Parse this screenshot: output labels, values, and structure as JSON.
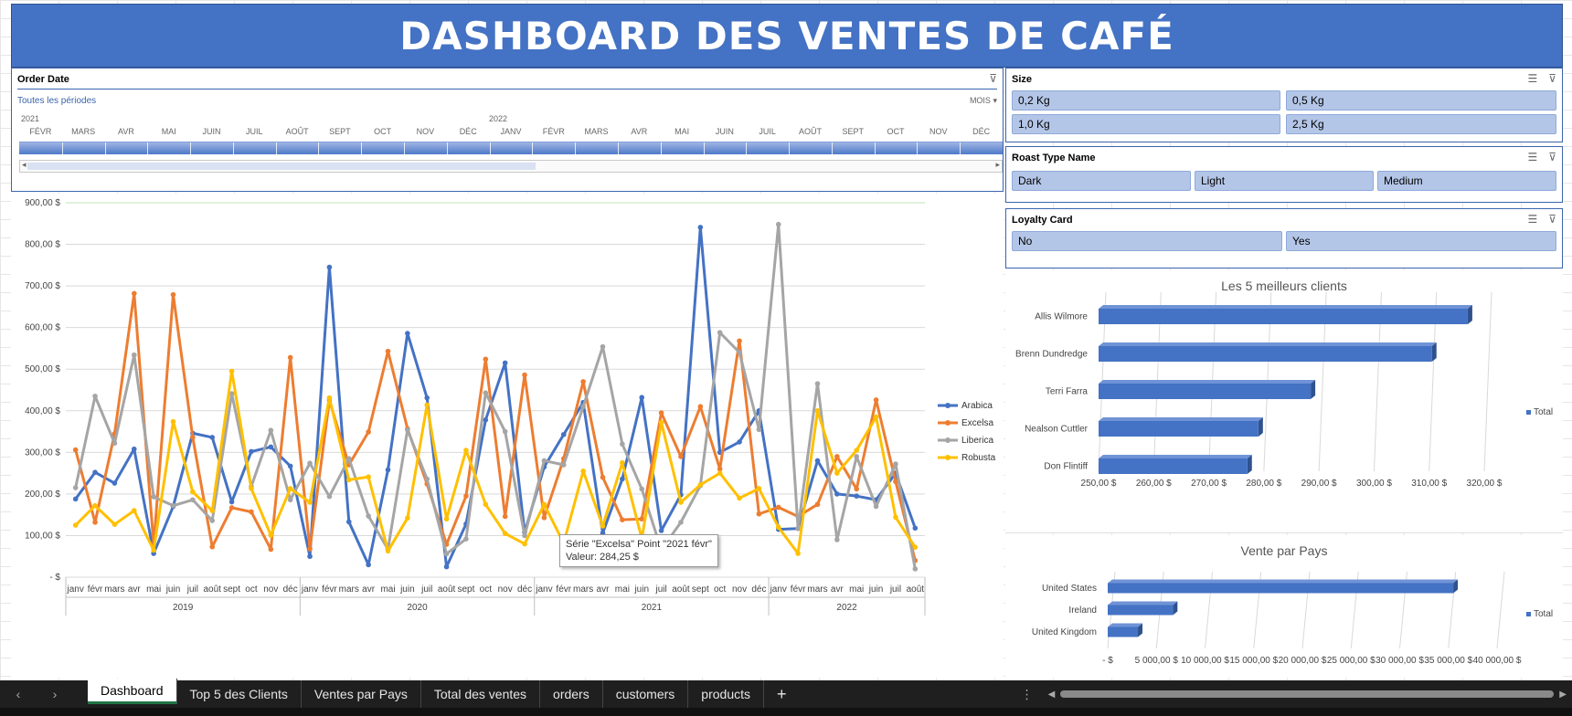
{
  "title": "DASHBOARD DES VENTES DE CAFÉ",
  "timeline": {
    "header": "Order Date",
    "period": "Toutes les périodes",
    "unit": "MOIS",
    "year_a": "2021",
    "year_b": "2022",
    "months": [
      "FÉVR",
      "MARS",
      "AVR",
      "MAI",
      "JUIN",
      "JUIL",
      "AOÛT",
      "SEPT",
      "OCT",
      "NOV",
      "DÉC",
      "JANV",
      "FÉVR",
      "MARS",
      "AVR",
      "MAI",
      "JUIN",
      "JUIL",
      "AOÛT",
      "SEPT",
      "OCT",
      "NOV",
      "DÉC"
    ]
  },
  "slicers": {
    "size": {
      "header": "Size",
      "items": [
        "0,2 Kg",
        "0,5 Kg",
        "1,0 Kg",
        "2,5 Kg"
      ]
    },
    "roast": {
      "header": "Roast Type Name",
      "items": [
        "Dark",
        "Light",
        "Medium"
      ]
    },
    "loyalty": {
      "header": "Loyalty Card",
      "items": [
        "No",
        "Yes"
      ]
    }
  },
  "tooltip": {
    "line1": "Série \"Excelsa\" Point \"2021 févr\"",
    "line2": "Valeur:  284,25  $"
  },
  "tabs": [
    "Dashboard",
    "Top 5 des Clients",
    "Ventes par Pays",
    "Total des ventes",
    "orders",
    "customers",
    "products"
  ],
  "add_tab": "+",
  "chart_data": [
    {
      "type": "line",
      "ylim": [
        0,
        900
      ],
      "yticks": [
        "-  $",
        "100,00 $",
        "200,00 $",
        "300,00 $",
        "400,00 $",
        "500,00 $",
        "600,00 $",
        "700,00 $",
        "800,00 $",
        "900,00 $"
      ],
      "months": [
        "janv",
        "févr",
        "mars",
        "avr",
        "mai",
        "juin",
        "juil",
        "août",
        "sept",
        "oct",
        "nov",
        "déc"
      ],
      "years": [
        "2019",
        "2020",
        "2021",
        "2022"
      ],
      "series": [
        {
          "name": "Arabica",
          "color": "#4472c4",
          "values": [
            188,
            252,
            226,
            308,
            57,
            170,
            346,
            336,
            181,
            302,
            313,
            267,
            50,
            745,
            133,
            30,
            258,
            586,
            431,
            25,
            128,
            378,
            515,
            108,
            265,
            343,
            420,
            106,
            236,
            432,
            112,
            198,
            841,
            300,
            325,
            400,
            115,
            117,
            280,
            200,
            195,
            186,
            250,
            118
          ]
        },
        {
          "name": "Excelsa",
          "color": "#ed7d31",
          "values": [
            306,
            132,
            345,
            682,
            78,
            679,
            336,
            73,
            167,
            157,
            67,
            528,
            68,
            425,
            270,
            349,
            543,
            357,
            224,
            79,
            195,
            524,
            146,
            486,
            143,
            285,
            470,
            240,
            138,
            140,
            395,
            290,
            410,
            260,
            568,
            152,
            168,
            146,
            175,
            290,
            212,
            426,
            230,
            40
          ]
        },
        {
          "name": "Liberica",
          "color": "#a5a5a5",
          "values": [
            215,
            435,
            322,
            534,
            193,
            172,
            186,
            136,
            441,
            218,
            353,
            186,
            274,
            194,
            285,
            147,
            67,
            354,
            236,
            56,
            92,
            443,
            350,
            100,
            280,
            270,
            410,
            554,
            320,
            212,
            66,
            132,
            220,
            588,
            540,
            355,
            848,
            117,
            465,
            90,
            290,
            170,
            272,
            20
          ]
        },
        {
          "name": "Robusta",
          "color": "#ffc000",
          "values": [
            125,
            172,
            127,
            160,
            65,
            374,
            205,
            160,
            495,
            213,
            101,
            213,
            180,
            431,
            234,
            241,
            63,
            142,
            414,
            140,
            305,
            175,
            105,
            80,
            175,
            82,
            255,
            123,
            275,
            93,
            372,
            180,
            222,
            250,
            190,
            213,
            120,
            57,
            400,
            250,
            305,
            385,
            144,
            72
          ]
        }
      ]
    },
    {
      "type": "bar",
      "title": "Les 5 meilleurs clients",
      "categories": [
        "Allis Wilmore",
        "Brenn Dundredge",
        "Terri Farra",
        "Nealson Cuttler",
        "Don Flintiff"
      ],
      "values": [
        317.0,
        310.5,
        288.5,
        279.0,
        277.0
      ],
      "xlim": [
        250,
        320
      ],
      "xticks": [
        "250,00 $",
        "260,00 $",
        "270,00 $",
        "280,00 $",
        "290,00 $",
        "300,00 $",
        "310,00 $",
        "320,00 $"
      ],
      "legend": "Total"
    },
    {
      "type": "bar",
      "title": "Vente par Pays",
      "categories": [
        "United States",
        "Ireland",
        "United Kingdom"
      ],
      "values": [
        35500,
        6700,
        3100
      ],
      "xlim": [
        0,
        40000
      ],
      "xticks": [
        "-  $",
        "5 000,00 $",
        "10 000,00 $",
        "15 000,00 $",
        "20 000,00 $",
        "25 000,00 $",
        "30 000,00 $",
        "35 000,00 $",
        "40 000,00 $"
      ],
      "legend": "Total"
    }
  ]
}
